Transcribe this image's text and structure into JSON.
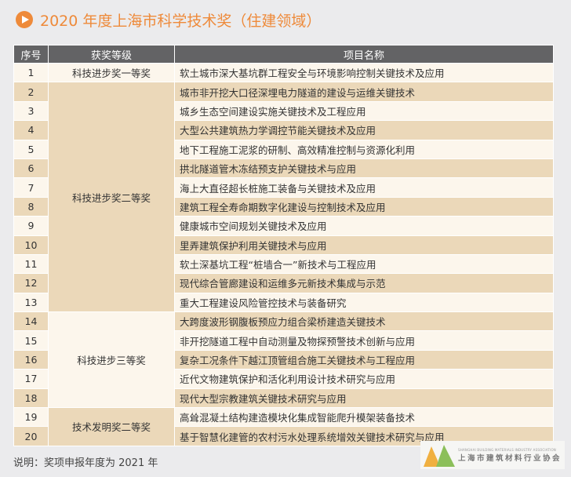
{
  "title": "2020 年度上海市科学技术奖（住建领域）",
  "headers": [
    "序号",
    "获奖等级",
    "项目名称"
  ],
  "groups": [
    {
      "award": "科技进步奖一等奖",
      "rows": [
        {
          "no": "1",
          "name": "软土城市深大基坑群工程安全与环境影响控制关键技术及应用"
        }
      ]
    },
    {
      "award": "科技进步奖二等奖",
      "rows": [
        {
          "no": "2",
          "name": "城市非开挖大口径深埋电力隧道的建设与运维关键技术"
        },
        {
          "no": "3",
          "name": "城乡生态空间建设实施关键技术及工程应用"
        },
        {
          "no": "4",
          "name": "大型公共建筑热力学调控节能关键技术及应用"
        },
        {
          "no": "5",
          "name": "地下工程施工泥浆的研制、高效精准控制与资源化利用"
        },
        {
          "no": "6",
          "name": "拱北隧道管木冻结预支护关键技术与应用"
        },
        {
          "no": "7",
          "name": "海上大直径超长桩施工装备与关键技术及应用"
        },
        {
          "no": "8",
          "name": "建筑工程全寿命期数字化建设与控制技术及应用"
        },
        {
          "no": "9",
          "name": "健康城市空间规划关键技术及应用"
        },
        {
          "no": "10",
          "name": "里弄建筑保护利用关键技术与应用"
        },
        {
          "no": "11",
          "name": "软土深基坑工程“桩墙合一”新技术与工程应用"
        },
        {
          "no": "12",
          "name": "现代综合管廊建设和运维多元新技术集成与示范"
        },
        {
          "no": "13",
          "name": "重大工程建设风险管控技术与装备研究"
        }
      ]
    },
    {
      "award": "科技进步三等奖",
      "rows": [
        {
          "no": "14",
          "name": "大跨度波形钢腹板预应力组合梁桥建造关键技术"
        },
        {
          "no": "15",
          "name": "非开挖隧道工程中自动测量及物探预警技术创新与应用"
        },
        {
          "no": "16",
          "name": "复杂工况条件下越江顶管组合施工关键技术与工程应用"
        },
        {
          "no": "17",
          "name": "近代文物建筑保护和活化利用设计技术研究与应用"
        },
        {
          "no": "18",
          "name": "现代大型宗教建筑关键技术研究与应用"
        }
      ]
    },
    {
      "award": "技术发明奖二等奖",
      "rows": [
        {
          "no": "19",
          "name": "高耸混凝土结构建造模块化集成智能爬升模架装备技术"
        },
        {
          "no": "20",
          "name": "基于智慧化建管的农村污水处理系统增效关键技术研究与应用"
        }
      ]
    }
  ],
  "note": "说明：奖项申报年度为 2021 年",
  "logo": {
    "en": "SHANGHAI BUILDING MATERIALS INDUSTRY ASSOCIATION",
    "cn": "上海市建筑材料行业协会",
    "mark": "SBMIA"
  },
  "colors": {
    "accent": "#ee8a3a",
    "header": "#636365",
    "row_light": "#fcf6ec",
    "row_dark": "#ebd8b9"
  }
}
